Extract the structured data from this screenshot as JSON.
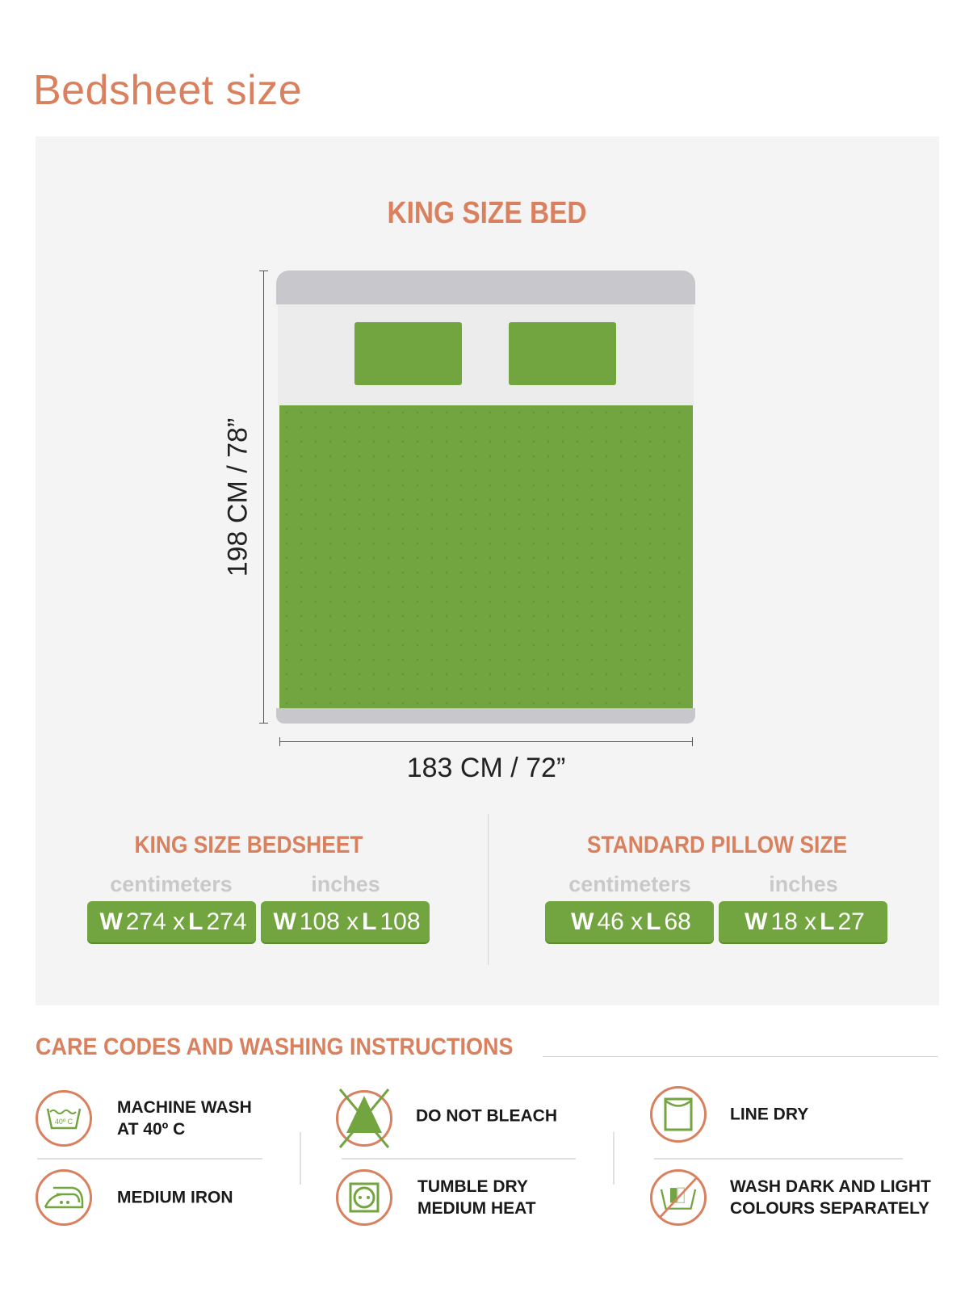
{
  "page_title": "Bedsheet size",
  "bed": {
    "title": "KING SIZE BED",
    "height_label": "198 CM / 78”",
    "width_label": "183 CM / 72”"
  },
  "bedsheet": {
    "title": "KING SIZE BEDSHEET",
    "units": [
      "centimeters",
      "inches"
    ],
    "sizes": [
      {
        "w_label": "W",
        "w": "274",
        "x": "x",
        "l_label": "L",
        "l": "274"
      },
      {
        "w_label": "W",
        "w": "108",
        "x": "x",
        "l_label": "L",
        "l": "108"
      }
    ]
  },
  "pillow": {
    "title": "STANDARD PILLOW SIZE",
    "units": [
      "centimeters",
      "inches"
    ],
    "sizes": [
      {
        "w_label": "W",
        "w": "46",
        "x": "x",
        "l_label": "L",
        "l": "68"
      },
      {
        "w_label": "W",
        "w": "18",
        "x": "x",
        "l_label": "L",
        "l": "27"
      }
    ]
  },
  "care": {
    "title": "CARE CODES AND WASHING INSTRUCTIONS",
    "items": [
      {
        "icon": "machine-wash-40-icon",
        "line1": "MACHINE WASH",
        "line2": "AT  40º C",
        "icon_text": "40º C"
      },
      {
        "icon": "do-not-bleach-icon",
        "line1": "DO NOT BLEACH",
        "line2": ""
      },
      {
        "icon": "line-dry-icon",
        "line1": "LINE DRY",
        "line2": ""
      },
      {
        "icon": "medium-iron-icon",
        "line1": "MEDIUM IRON",
        "line2": ""
      },
      {
        "icon": "tumble-dry-medium-icon",
        "line1": "TUMBLE DRY",
        "line2": "MEDIUM HEAT"
      },
      {
        "icon": "wash-separately-icon",
        "line1": "WASH DARK AND LIGHT",
        "line2": "COLOURS SEPARATELY"
      }
    ]
  },
  "colors": {
    "accent": "#d9805e",
    "green": "#72a53f",
    "panel": "#f4f4f4",
    "frame": "#c8c8cc"
  }
}
